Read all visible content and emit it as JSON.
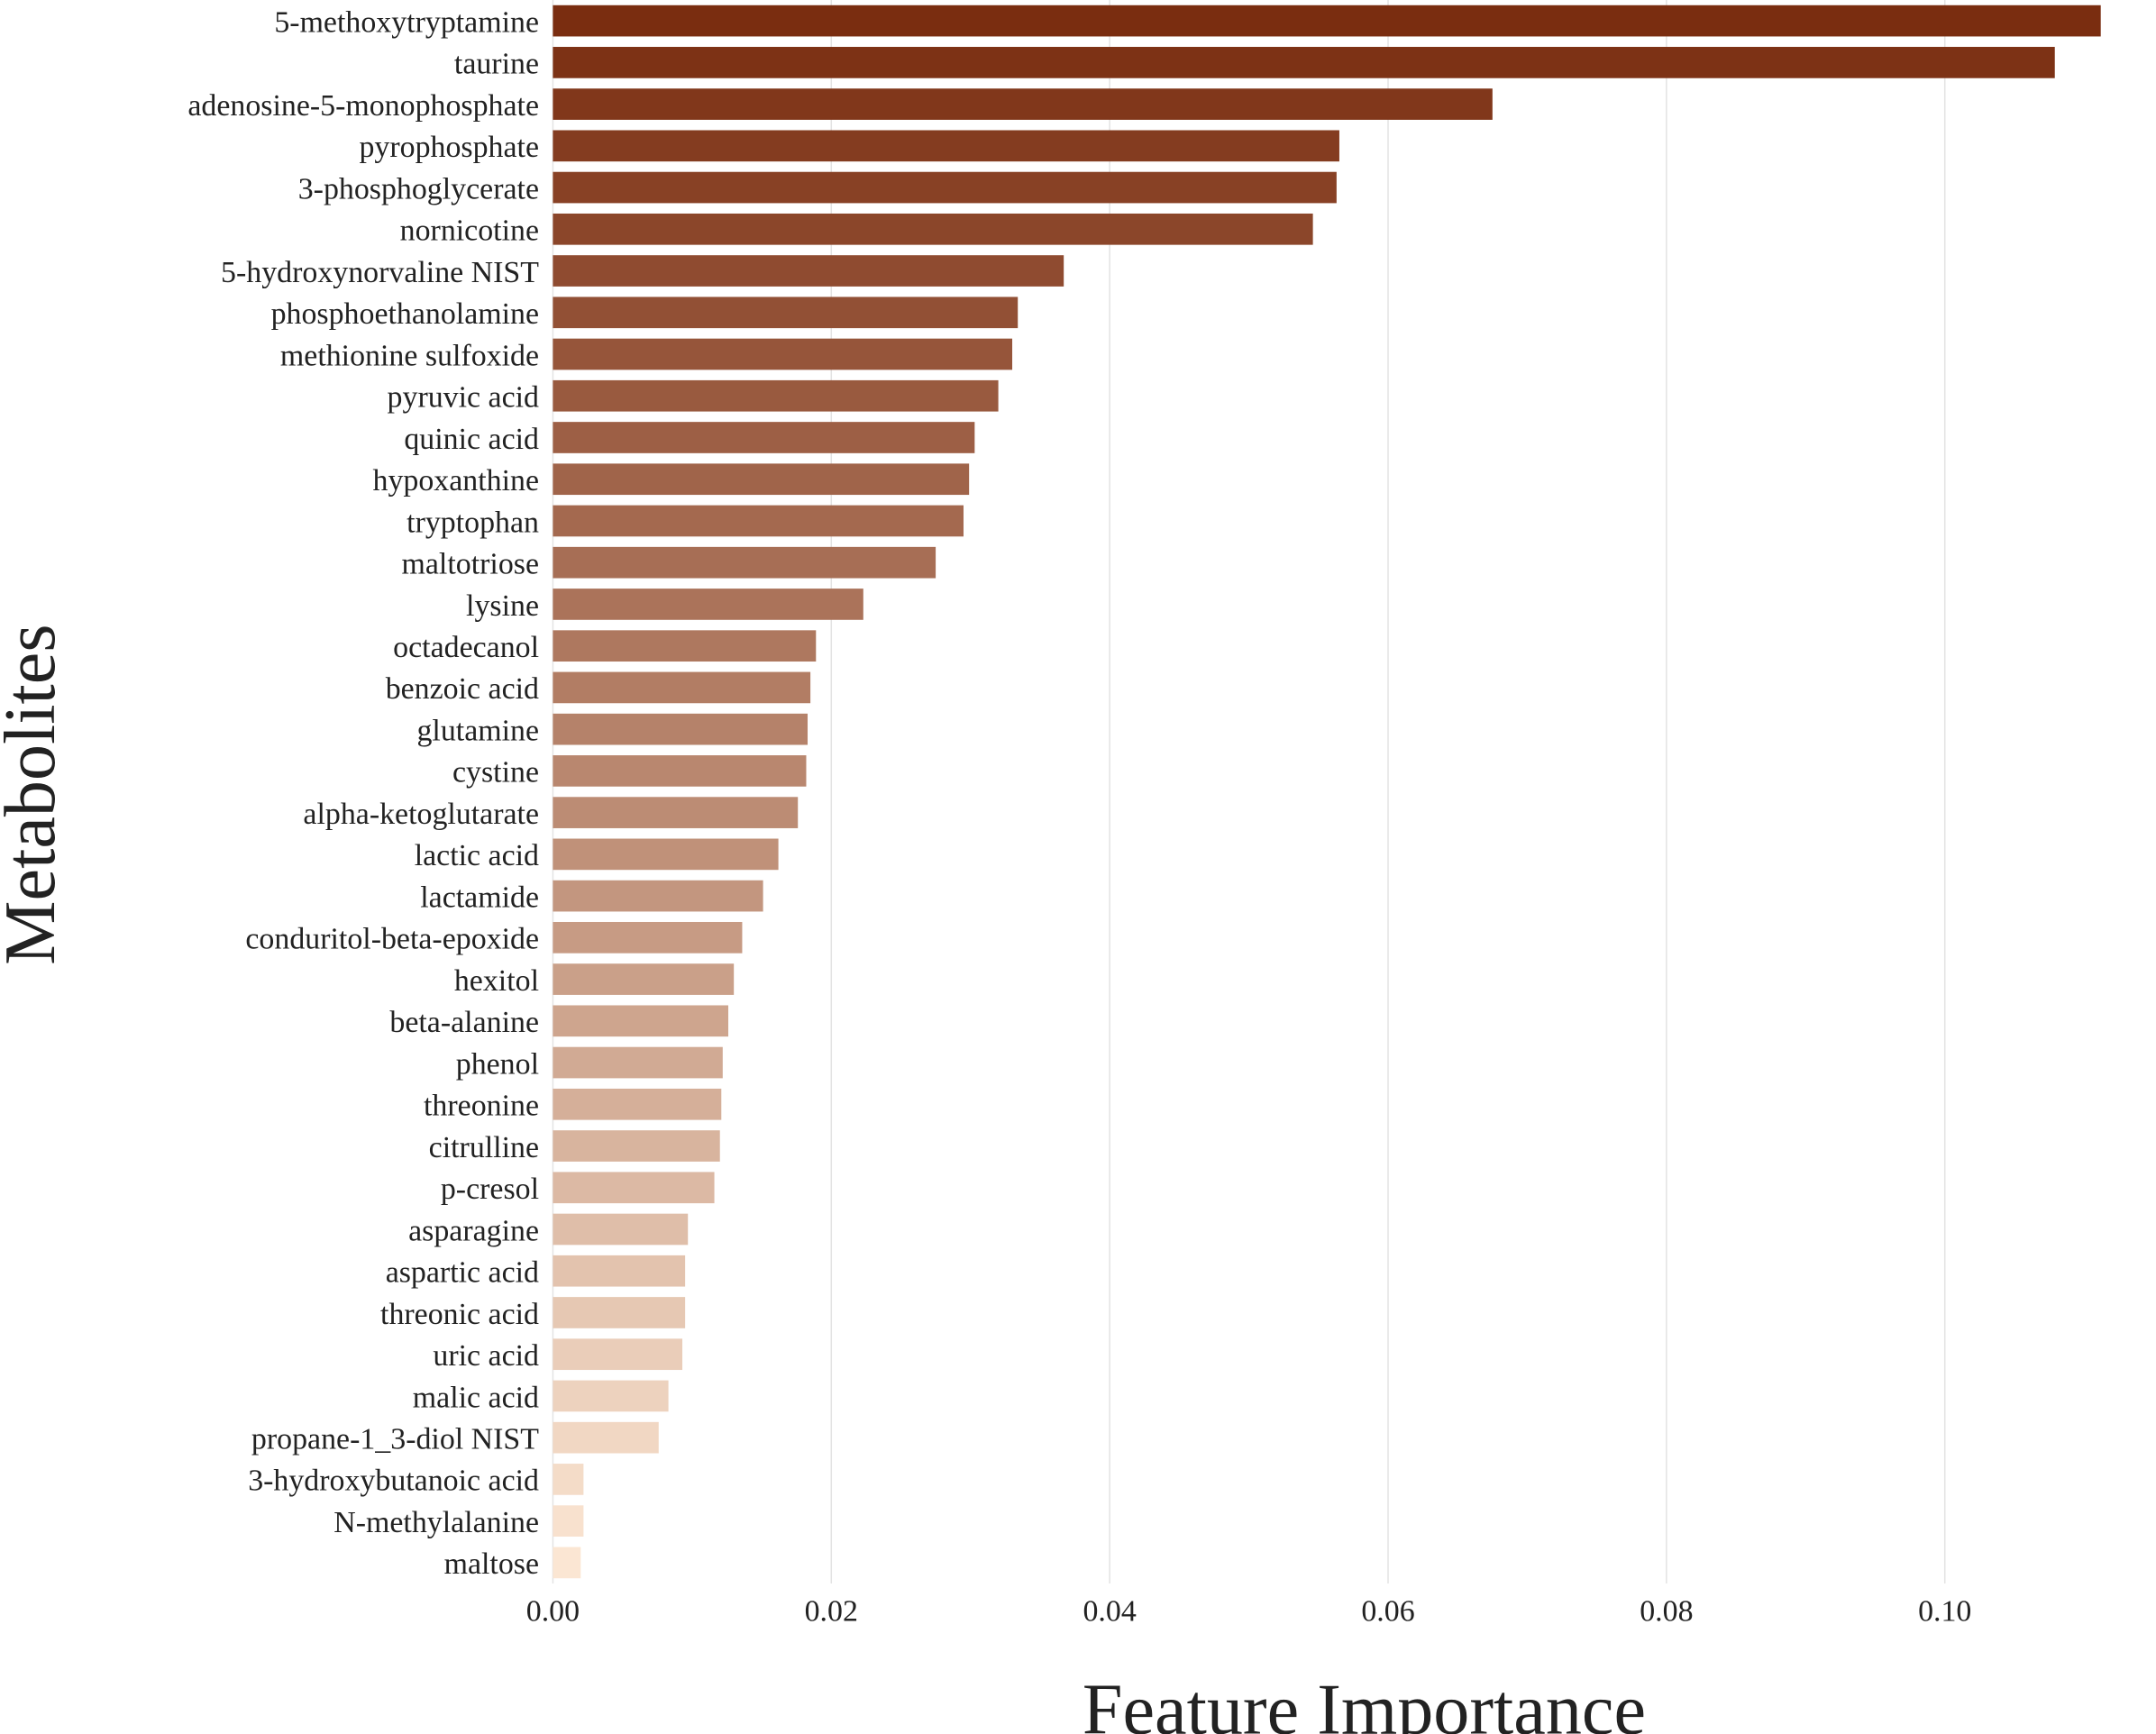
{
  "chart_data": {
    "type": "bar",
    "orientation": "horizontal",
    "title": "",
    "xlabel": "Feature Importance",
    "ylabel": "Metabolites",
    "xlim": [
      0,
      0.112
    ],
    "xticks": [
      0.0,
      0.02,
      0.04,
      0.06,
      0.08,
      0.1
    ],
    "xtick_labels": [
      "0.00",
      "0.02",
      "0.04",
      "0.06",
      "0.08",
      "0.10"
    ],
    "grid": "vertical",
    "legend": "none",
    "color_scale": [
      "#7a2d10",
      "#fbe6d3"
    ],
    "categories": [
      "5-methoxytryptamine",
      "taurine",
      "adenosine-5-monophosphate",
      "pyrophosphate",
      "3-phosphoglycerate",
      "nornicotine",
      "5-hydroxynorvaline NIST",
      "phosphoethanolamine",
      "methionine sulfoxide",
      "pyruvic acid",
      "quinic acid",
      "hypoxanthine",
      "tryptophan",
      "maltotriose",
      "lysine",
      "octadecanol",
      "benzoic acid",
      "glutamine",
      "cystine",
      "alpha-ketoglutarate",
      "lactic acid",
      "lactamide",
      "conduritol-beta-epoxide",
      "hexitol",
      "beta-alanine",
      "phenol",
      "threonine",
      "citrulline",
      "p-cresol",
      "asparagine",
      "aspartic acid",
      "threonic acid",
      "uric acid",
      "malic acid",
      "propane-1_3-diol NIST",
      "3-hydroxybutanoic acid",
      "N-methylalanine",
      "maltose"
    ],
    "values": [
      0.1112,
      0.1079,
      0.0675,
      0.0565,
      0.0563,
      0.0546,
      0.0367,
      0.0334,
      0.033,
      0.032,
      0.0303,
      0.0299,
      0.0295,
      0.0275,
      0.0223,
      0.0189,
      0.0185,
      0.0183,
      0.0182,
      0.0176,
      0.0162,
      0.0151,
      0.0136,
      0.013,
      0.0126,
      0.0122,
      0.0121,
      0.012,
      0.0116,
      0.0097,
      0.0095,
      0.0095,
      0.0093,
      0.0083,
      0.0076,
      0.0022,
      0.0022,
      0.002
    ]
  }
}
